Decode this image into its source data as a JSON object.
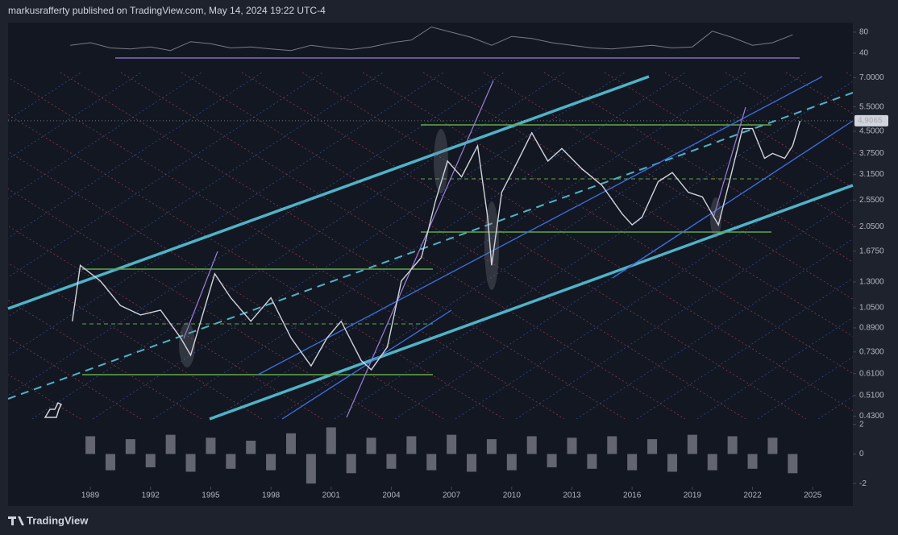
{
  "header": {
    "text": "markusrafferty published on TradingView.com, May 14, 2024 19:22 UTC-4"
  },
  "footer": {
    "brand": "TradingView"
  },
  "chart_data": [
    {
      "type": "line",
      "scale": "log",
      "color": "#d1d4dc",
      "xlim": [
        1984.9,
        2027
      ],
      "ylim": [
        0.42,
        7.4
      ],
      "xticks": [
        1989,
        1992,
        1995,
        1998,
        2001,
        2004,
        2007,
        2010,
        2013,
        2016,
        2019,
        2022,
        2025
      ],
      "yticks": [
        {
          "value": 7,
          "label": "7.0000"
        },
        {
          "value": 5.5,
          "label": "5.5000"
        },
        {
          "value": 4.5,
          "label": "4.5000"
        },
        {
          "value": 3.75,
          "label": "3.7500"
        },
        {
          "value": 3.15,
          "label": "3.1500"
        },
        {
          "value": 2.55,
          "label": "2.5500"
        },
        {
          "value": 2.05,
          "label": "2.0500"
        },
        {
          "value": 1.675,
          "label": "1.6750"
        },
        {
          "value": 1.3,
          "label": "1.3000"
        },
        {
          "value": 1.05,
          "label": "1.0500"
        },
        {
          "value": 0.89,
          "label": "0.8900"
        },
        {
          "value": 0.73,
          "label": "0.7300"
        },
        {
          "value": 0.61,
          "label": "0.6100"
        },
        {
          "value": 0.51,
          "label": "0.5100"
        },
        {
          "value": 0.43,
          "label": "0.4300"
        }
      ],
      "last_price": 4.9065,
      "x": [
        1988.1,
        1988.5,
        1989.5,
        1990.5,
        1991.5,
        1992.5,
        1993.5,
        1994.0,
        1994.5,
        1995.2,
        1996,
        1997,
        1998,
        1999,
        2000,
        2000.8,
        2001.5,
        2002.5,
        2003,
        2003.8,
        2004.5,
        2005.5,
        2006.2,
        2006.8,
        2007.5,
        2008.3,
        2008.8,
        2009.0,
        2009.5,
        2010.3,
        2011.0,
        2011.8,
        2012.5,
        2013.5,
        2014.5,
        2015.5,
        2016.0,
        2016.5,
        2017.3,
        2018,
        2018.8,
        2019.5,
        2020.3,
        2020.8,
        2021.5,
        2022.0,
        2022.6,
        2023.0,
        2023.6,
        2024.0,
        2024.37
      ],
      "values": [
        0.94,
        1.49,
        1.31,
        1.07,
        0.99,
        1.03,
        0.82,
        0.71,
        0.94,
        1.39,
        1.14,
        0.94,
        1.14,
        0.82,
        0.65,
        0.82,
        0.94,
        0.68,
        0.63,
        0.76,
        1.31,
        1.59,
        2.53,
        3.52,
        3.09,
        3.99,
        2.22,
        1.49,
        2.72,
        3.52,
        4.44,
        3.52,
        3.9,
        3.3,
        2.88,
        2.28,
        2.08,
        2.22,
        2.97,
        3.2,
        2.72,
        2.62,
        2.08,
        2.88,
        4.6,
        4.6,
        3.6,
        3.75,
        3.6,
        3.99,
        4.9065
      ]
    },
    {
      "type": "line",
      "color": "#787b86",
      "ylim": [
        0,
        103
      ],
      "yticks": [
        80,
        40
      ],
      "x": [
        1988,
        1989,
        1990,
        1991,
        1992,
        1993,
        1994,
        1995,
        1996,
        1997,
        1998,
        1999,
        2000,
        2001,
        2002,
        2003,
        2004,
        2005,
        2006,
        2007,
        2008,
        2009,
        2010,
        2011,
        2012,
        2013,
        2014,
        2015,
        2016,
        2017,
        2018,
        2019,
        2020,
        2021,
        2022,
        2023,
        2024
      ],
      "values": [
        55,
        60,
        50,
        48,
        52,
        45,
        62,
        58,
        50,
        52,
        48,
        45,
        55,
        50,
        47,
        52,
        60,
        65,
        90,
        80,
        70,
        55,
        72,
        68,
        60,
        55,
        50,
        48,
        52,
        55,
        50,
        52,
        82,
        70,
        55,
        60,
        75
      ]
    },
    {
      "type": "bar",
      "color": "#787b86",
      "ylim": [
        -2.1,
        2.15
      ],
      "yticks": [
        2,
        0,
        -2
      ],
      "x": [
        1989,
        1990,
        1991,
        1992,
        1993,
        1994,
        1995,
        1996,
        1997,
        1998,
        1999,
        2000,
        2001,
        2002,
        2003,
        2004,
        2005,
        2006,
        2007,
        2008,
        2009,
        2010,
        2011,
        2012,
        2013,
        2014,
        2015,
        2016,
        2017,
        2018,
        2019,
        2020,
        2021,
        2022,
        2023,
        2024
      ],
      "values": [
        1.2,
        -1.1,
        1.0,
        -0.9,
        1.3,
        -1.2,
        1.1,
        -1.0,
        0.9,
        -1.1,
        1.4,
        -2.0,
        1.8,
        -1.3,
        1.1,
        -1.0,
        1.2,
        -1.1,
        1.3,
        -1.2,
        1.0,
        -1.1,
        1.2,
        -0.9,
        1.1,
        -1.0,
        1.2,
        -1.1,
        1.0,
        -1.2,
        1.3,
        -1.1,
        1.2,
        -1.0,
        1.1,
        -1.3
      ]
    }
  ]
}
